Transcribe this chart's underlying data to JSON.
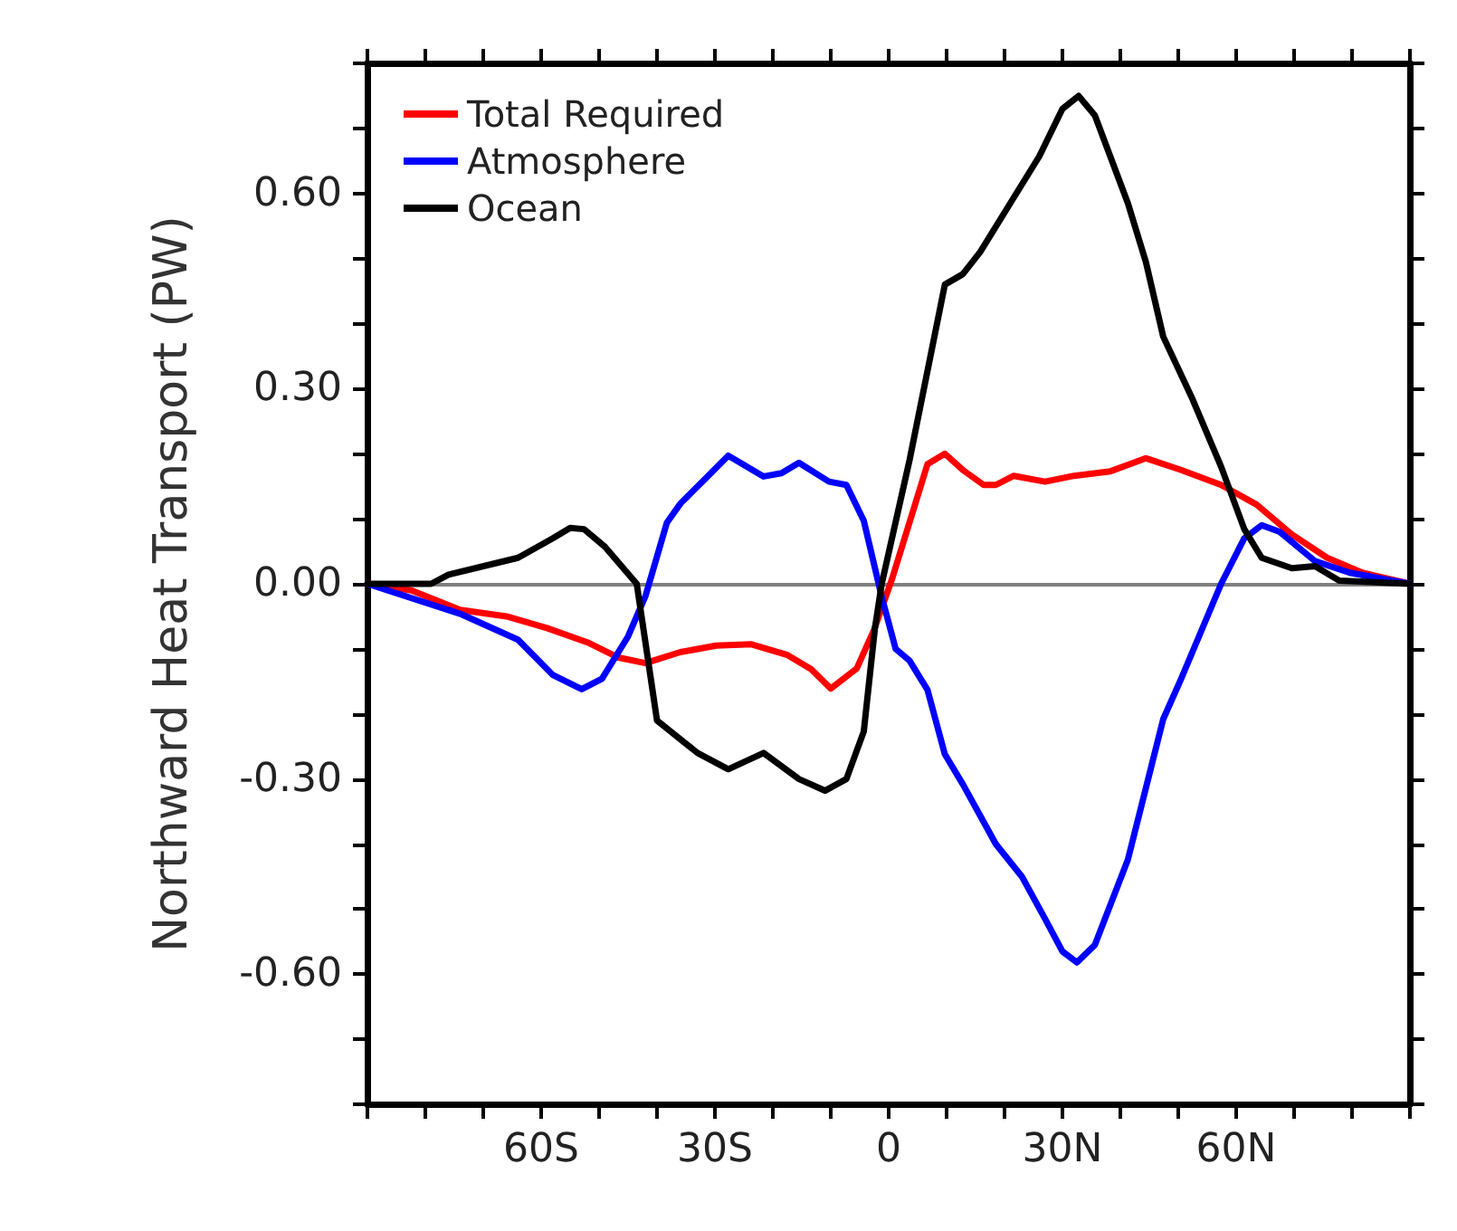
{
  "chart_data": {
    "type": "line",
    "ylabel": "Northward Heat Transport (PW)",
    "xlim": [
      -90,
      90
    ],
    "xticks": [
      {
        "value": -90,
        "label": null
      },
      {
        "value": -80,
        "label": null
      },
      {
        "value": -70,
        "label": null
      },
      {
        "value": -60,
        "label": "60S"
      },
      {
        "value": -50,
        "label": null
      },
      {
        "value": -40,
        "label": null
      },
      {
        "value": -30,
        "label": "30S"
      },
      {
        "value": -20,
        "label": null
      },
      {
        "value": -10,
        "label": null
      },
      0,
      {
        "value": 10,
        "label": null
      },
      {
        "value": 20,
        "label": null
      },
      {
        "value": 30,
        "label": "30N"
      },
      {
        "value": 40,
        "label": null
      },
      {
        "value": 50,
        "label": null
      },
      {
        "value": 60,
        "label": "60N"
      },
      {
        "value": 70,
        "label": null
      },
      {
        "value": 80,
        "label": null
      },
      {
        "value": 90,
        "label": null
      }
    ],
    "ylim": [
      -0.8,
      0.8
    ],
    "yticks": [
      {
        "value": -0.8,
        "label": null
      },
      {
        "value": -0.7,
        "label": null
      },
      {
        "value": -0.6,
        "label": "-0.60"
      },
      {
        "value": -0.5,
        "label": null
      },
      {
        "value": -0.4,
        "label": null
      },
      {
        "value": -0.3,
        "label": "-0.30"
      },
      {
        "value": -0.2,
        "label": null
      },
      {
        "value": -0.1,
        "label": null
      },
      {
        "value": 0,
        "label": "0.00"
      },
      {
        "value": 0.1,
        "label": null
      },
      {
        "value": 0.2,
        "label": null
      },
      {
        "value": 0.3,
        "label": "0.30"
      },
      {
        "value": 0.4,
        "label": null
      },
      {
        "value": 0.5,
        "label": null
      },
      {
        "value": 0.6,
        "label": "0.60"
      },
      {
        "value": 0.7,
        "label": null
      },
      {
        "value": 0.8,
        "label": null
      }
    ],
    "grid": false,
    "legend": "top left",
    "marker": "none",
    "line_style": "solid",
    "ref_lines": [
      {
        "axis": "y",
        "value": 0,
        "label": null,
        "color": "#808080"
      }
    ],
    "series": [
      {
        "name": "Total Required",
        "color": "#ff0000",
        "x": [
          -90,
          -82.4,
          -74,
          -66,
          -59,
          -52,
          -46.8,
          -42,
          -36,
          -29.8,
          -23.7,
          -17.6,
          -13.4,
          -10,
          -5.5,
          -2.5,
          0.6,
          6.7,
          9.7,
          12.8,
          16.4,
          18.5,
          21.6,
          27,
          32,
          38.3,
          44.4,
          50.5,
          57.4,
          63.5,
          69.6,
          75.7,
          81.8,
          90
        ],
        "values": [
          0,
          -0.01,
          -0.04,
          -0.05,
          -0.068,
          -0.09,
          -0.113,
          -0.122,
          -0.105,
          -0.095,
          -0.093,
          -0.109,
          -0.131,
          -0.161,
          -0.13,
          -0.07,
          0.008,
          0.184,
          0.2,
          0.175,
          0.152,
          0.152,
          0.166,
          0.157,
          0.166,
          0.173,
          0.193,
          0.175,
          0.152,
          0.122,
          0.076,
          0.04,
          0.017,
          0
        ]
      },
      {
        "name": "Atmosphere",
        "color": "#0000ff",
        "x": [
          -90,
          -74,
          -64,
          -58,
          -53,
          -49.5,
          -45,
          -42,
          -38.3,
          -35.9,
          -31.6,
          -27.7,
          -21.6,
          -18.5,
          -15.5,
          -10.3,
          -7.3,
          -4.3,
          -1.2,
          1.2,
          3.6,
          6.7,
          9.7,
          12.8,
          18.5,
          23,
          27,
          30,
          32.5,
          35.6,
          41.3,
          47.4,
          50.5,
          57.4,
          61.4,
          64.4,
          67.5,
          73.6,
          79.6,
          90
        ],
        "values": [
          0,
          -0.046,
          -0.086,
          -0.14,
          -0.162,
          -0.146,
          -0.081,
          -0.019,
          0.094,
          0.124,
          0.162,
          0.197,
          0.165,
          0.17,
          0.186,
          0.157,
          0.152,
          0.097,
          -0.02,
          -0.1,
          -0.118,
          -0.163,
          -0.262,
          -0.308,
          -0.4,
          -0.45,
          -0.515,
          -0.565,
          -0.582,
          -0.555,
          -0.424,
          -0.208,
          -0.146,
          0,
          0.07,
          0.09,
          0.08,
          0.035,
          0.017,
          0
        ]
      },
      {
        "name": "Ocean",
        "color": "#000000",
        "x": [
          -90,
          -79,
          -76,
          -64,
          -58,
          -55,
          -52.6,
          -49,
          -43.5,
          -40,
          -33,
          -27.7,
          -21.6,
          -15.5,
          -11,
          -7.3,
          -4.3,
          -2.4,
          -1.2,
          3.6,
          9.7,
          12.8,
          15.8,
          21,
          26,
          30,
          32.8,
          35.6,
          41.3,
          44.4,
          47.4,
          52.3,
          57.4,
          61.4,
          64.4,
          69.6,
          73.6,
          77.8,
          90
        ],
        "values": [
          0,
          0,
          0.014,
          0.04,
          0.07,
          0.086,
          0.084,
          0.057,
          0,
          -0.21,
          -0.26,
          -0.285,
          -0.26,
          -0.3,
          -0.318,
          -0.3,
          -0.227,
          -0.07,
          0,
          0.19,
          0.46,
          0.476,
          0.51,
          0.585,
          0.657,
          0.73,
          0.75,
          0.72,
          0.585,
          0.495,
          0.38,
          0.287,
          0.18,
          0.084,
          0.04,
          0.024,
          0.027,
          0.005,
          0
        ]
      }
    ]
  }
}
